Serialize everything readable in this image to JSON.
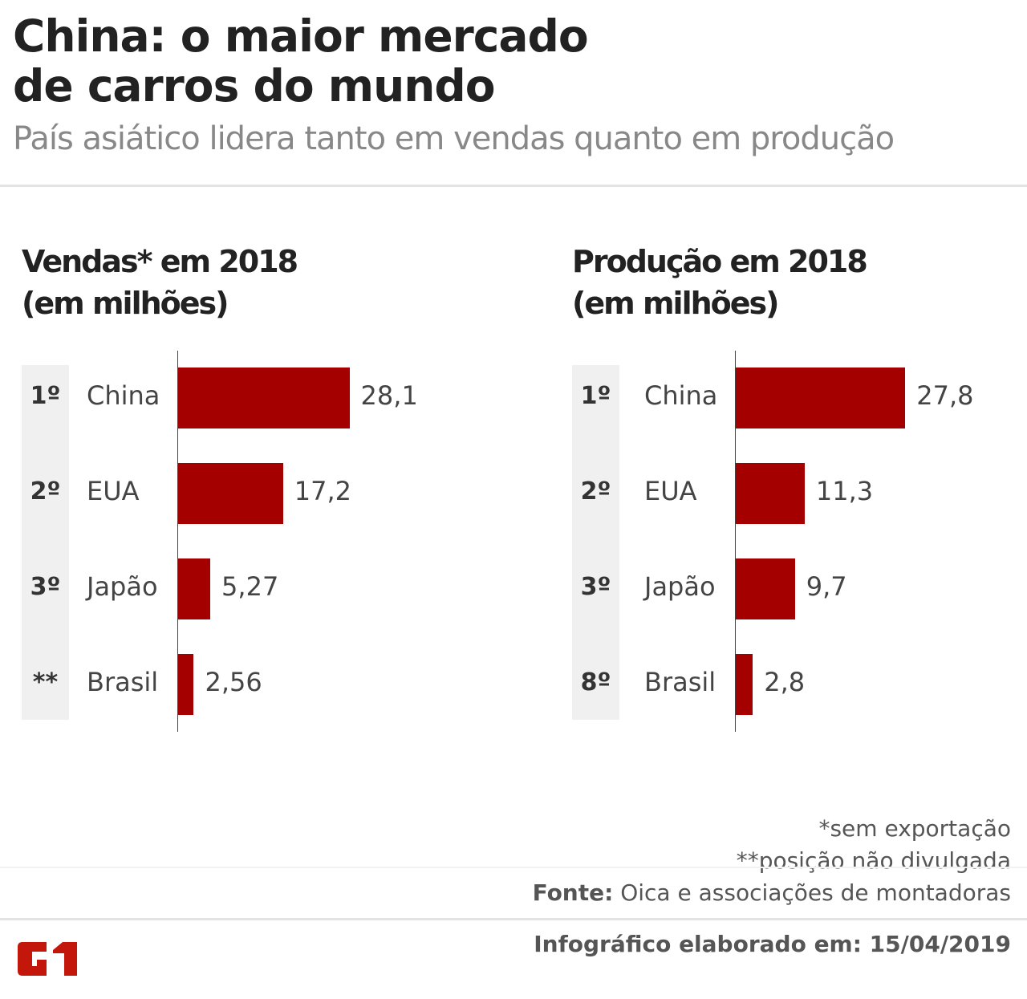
{
  "header": {
    "title_line1": "China: o maior mercado",
    "title_line2": "de carros do mundo",
    "subtitle": "País asiático lidera tanto em vendas quanto em produção"
  },
  "chart_data": [
    {
      "type": "bar",
      "title_line1": "Vendas* em 2018",
      "title_line2": "(em milhões)",
      "categories": [
        "China",
        "EUA",
        "Japão",
        "Brasil"
      ],
      "ranks": [
        "1º",
        "2º",
        "3º",
        "**"
      ],
      "values": [
        28.1,
        17.2,
        5.27,
        2.56
      ],
      "labels": [
        "28,1",
        "17,2",
        "5,27",
        "2,56"
      ],
      "xlim": [
        0,
        30
      ]
    },
    {
      "type": "bar",
      "title_line1": "Produção em 2018",
      "title_line2": "(em milhões)",
      "categories": [
        "China",
        "EUA",
        "Japão",
        "Brasil"
      ],
      "ranks": [
        "1º",
        "2º",
        "3º",
        "8º"
      ],
      "values": [
        27.8,
        11.3,
        9.7,
        2.8
      ],
      "labels": [
        "27,8",
        "11,3",
        "9,7",
        "2,8"
      ],
      "xlim": [
        0,
        30
      ]
    }
  ],
  "footer": {
    "note1": "*sem exportação",
    "note2": "**posição não divulgada",
    "source_label": "Fonte:",
    "source_text": " Oica e associações de montadoras",
    "date": "Infográfico elaborado em: 15/04/2019",
    "logo": "G1"
  },
  "colors": {
    "bar": "#a50000",
    "logo": "#c4170c"
  }
}
